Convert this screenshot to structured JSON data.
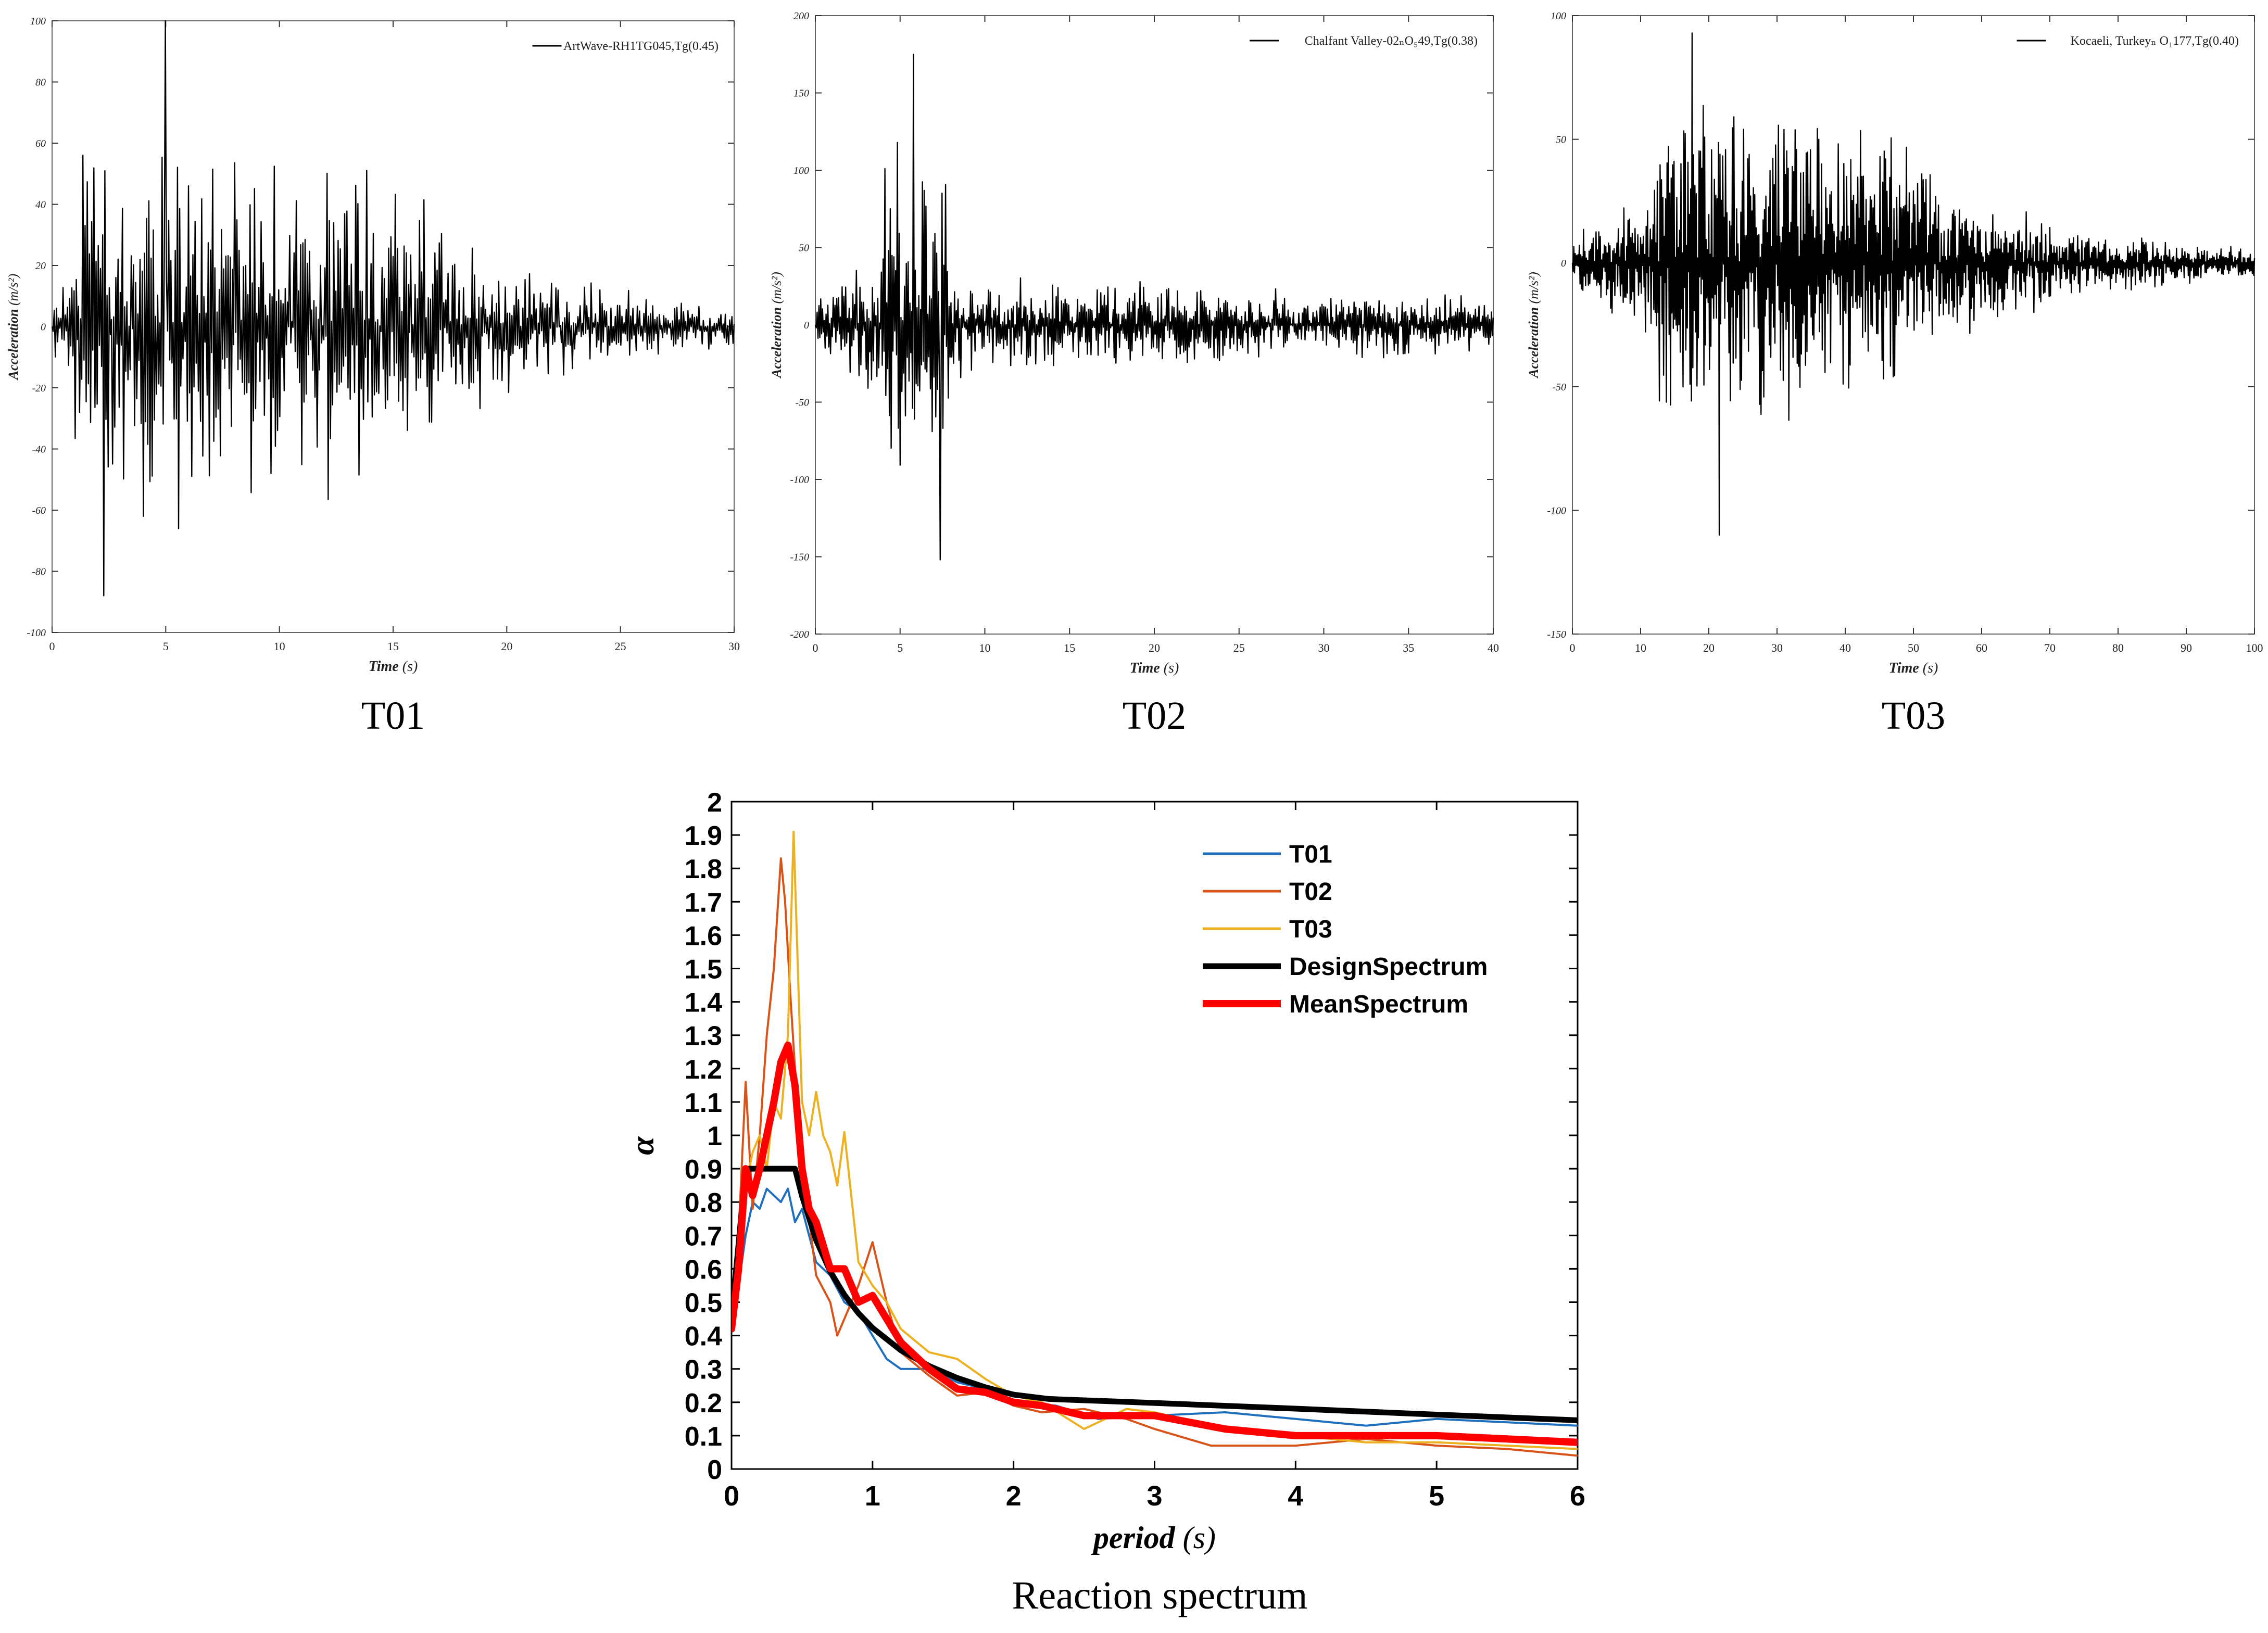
{
  "chart_data": [
    {
      "type": "line",
      "caption": "T01",
      "legend": "ArtWave-RH1TG045,Tg(0.45)",
      "xlabel": "Time",
      "xunit": "(s)",
      "ylabel": "Acceleration",
      "yunit": "(m/s²)",
      "xlim": [
        0,
        30
      ],
      "ylim": [
        -100,
        100
      ],
      "xticks": [
        0,
        5,
        10,
        15,
        20,
        25,
        30
      ],
      "yticks": [
        -100,
        -80,
        -60,
        -40,
        -20,
        0,
        20,
        40,
        60,
        80,
        100
      ],
      "duration": 30,
      "peak_time": 5,
      "peak_value": 100,
      "min_value": -88,
      "strong_phase": [
        1,
        15
      ]
    },
    {
      "type": "line",
      "caption": "T02",
      "legend": "Chalfant Valley-02ₙO₅49,Tg(0.38)",
      "xlabel": "Time",
      "xunit": "(s)",
      "ylabel": "Acceleration",
      "yunit": "(m/s²)",
      "xlim": [
        0,
        40
      ],
      "ylim": [
        -200,
        200
      ],
      "xticks": [
        0,
        5,
        10,
        15,
        20,
        25,
        30,
        35,
        40
      ],
      "yticks": [
        -200,
        -150,
        -100,
        -50,
        0,
        50,
        100,
        150,
        200
      ],
      "duration": 40,
      "peak_time": 5.8,
      "peak_value": 175,
      "min_value": -152,
      "strong_phase": [
        4,
        8
      ]
    },
    {
      "type": "line",
      "caption": "T03",
      "legend": "Kocaeli, Turkeyₙ O₁177,Tg(0.40)",
      "xlabel": "Time",
      "xunit": "(s)",
      "ylabel": "Acceleration",
      "yunit": "(m/s²)",
      "xlim": [
        0,
        100
      ],
      "ylim": [
        -150,
        100
      ],
      "xticks": [
        0,
        10,
        20,
        30,
        40,
        50,
        60,
        70,
        80,
        90,
        100
      ],
      "yticks": [
        -150,
        -100,
        -50,
        0,
        50,
        100
      ],
      "duration": 100,
      "peak_time": 17.5,
      "peak_value": 93,
      "min_value": -110,
      "strong_phase": [
        12,
        45
      ]
    },
    {
      "type": "line",
      "caption": "Reaction spectrum",
      "xlabel": "period",
      "xunit": "(s)",
      "ylabel": "α",
      "xlim": [
        0,
        6
      ],
      "ylim": [
        0,
        2
      ],
      "xticks": [
        0,
        1,
        2,
        3,
        4,
        5,
        6
      ],
      "yticks": [
        0,
        0.1,
        0.2,
        0.3,
        0.4,
        0.5,
        0.6,
        0.7,
        0.8,
        0.9,
        1,
        1.1,
        1.2,
        1.3,
        1.4,
        1.5,
        1.6,
        1.7,
        1.8,
        1.9,
        2
      ],
      "series": [
        {
          "name": "T01",
          "color": "#1f6fbf",
          "width": 4,
          "x": [
            0,
            0.05,
            0.1,
            0.15,
            0.2,
            0.25,
            0.3,
            0.35,
            0.4,
            0.45,
            0.5,
            0.6,
            0.7,
            0.8,
            0.9,
            1.0,
            1.1,
            1.2,
            1.4,
            1.6,
            1.8,
            2.0,
            2.3,
            2.6,
            3.0,
            3.5,
            4.0,
            4.5,
            5.0,
            5.5,
            6.0
          ],
          "y": [
            0.42,
            0.55,
            0.7,
            0.8,
            0.78,
            0.84,
            0.82,
            0.8,
            0.84,
            0.74,
            0.78,
            0.62,
            0.58,
            0.5,
            0.47,
            0.4,
            0.33,
            0.3,
            0.3,
            0.26,
            0.24,
            0.2,
            0.19,
            0.15,
            0.16,
            0.17,
            0.15,
            0.13,
            0.15,
            0.14,
            0.13
          ]
        },
        {
          "name": "T02",
          "color": "#d95319",
          "width": 4,
          "x": [
            0,
            0.05,
            0.1,
            0.15,
            0.2,
            0.25,
            0.3,
            0.35,
            0.38,
            0.42,
            0.45,
            0.5,
            0.55,
            0.6,
            0.7,
            0.75,
            0.8,
            0.9,
            1.0,
            1.1,
            1.2,
            1.4,
            1.6,
            1.8,
            2.0,
            2.2,
            2.5,
            2.8,
            3.0,
            3.4,
            4.0,
            4.5,
            5.0,
            5.5,
            6.0
          ],
          "y": [
            0.42,
            0.7,
            1.16,
            0.78,
            1.0,
            1.3,
            1.5,
            1.83,
            1.7,
            1.4,
            1.2,
            0.85,
            0.75,
            0.58,
            0.5,
            0.4,
            0.45,
            0.55,
            0.68,
            0.5,
            0.35,
            0.28,
            0.22,
            0.23,
            0.19,
            0.17,
            0.18,
            0.15,
            0.12,
            0.07,
            0.07,
            0.09,
            0.07,
            0.06,
            0.04
          ]
        },
        {
          "name": "T03",
          "color": "#edb120",
          "width": 4,
          "x": [
            0,
            0.05,
            0.1,
            0.15,
            0.2,
            0.25,
            0.3,
            0.35,
            0.4,
            0.44,
            0.5,
            0.55,
            0.6,
            0.65,
            0.7,
            0.75,
            0.8,
            0.9,
            1.0,
            1.1,
            1.2,
            1.4,
            1.6,
            1.8,
            2.0,
            2.2,
            2.5,
            2.8,
            3.0,
            3.5,
            4.0,
            4.5,
            5.0,
            5.5,
            6.0
          ],
          "y": [
            0.42,
            0.6,
            0.85,
            0.95,
            1.0,
            0.9,
            1.1,
            1.05,
            1.3,
            1.91,
            1.1,
            1.0,
            1.13,
            1.0,
            0.95,
            0.85,
            1.01,
            0.62,
            0.55,
            0.5,
            0.42,
            0.35,
            0.33,
            0.27,
            0.22,
            0.2,
            0.12,
            0.18,
            0.17,
            0.12,
            0.1,
            0.08,
            0.08,
            0.07,
            0.06
          ]
        },
        {
          "name": "DesignSpectrum",
          "color": "#000000",
          "width": 11,
          "x": [
            0,
            0.1,
            0.45,
            0.5,
            0.6,
            0.7,
            0.8,
            0.9,
            1.0,
            1.2,
            1.4,
            1.6,
            1.8,
            2.0,
            2.25,
            3.0,
            4.0,
            5.0,
            6.0
          ],
          "y": [
            0.45,
            0.9,
            0.9,
            0.818,
            0.686,
            0.592,
            0.522,
            0.467,
            0.423,
            0.356,
            0.309,
            0.273,
            0.245,
            0.223,
            0.21,
            0.198,
            0.181,
            0.163,
            0.146
          ]
        },
        {
          "name": "MeanSpectrum",
          "color": "#ff0000",
          "width": 14,
          "x": [
            0,
            0.05,
            0.1,
            0.15,
            0.2,
            0.25,
            0.3,
            0.35,
            0.4,
            0.45,
            0.5,
            0.55,
            0.6,
            0.7,
            0.8,
            0.9,
            1.0,
            1.2,
            1.4,
            1.6,
            1.8,
            2.0,
            2.2,
            2.5,
            2.8,
            3.0,
            3.5,
            4.0,
            4.5,
            5.0,
            5.5,
            6.0
          ],
          "y": [
            0.42,
            0.6,
            0.9,
            0.82,
            0.9,
            1.0,
            1.1,
            1.22,
            1.27,
            1.15,
            0.9,
            0.78,
            0.74,
            0.6,
            0.6,
            0.5,
            0.52,
            0.38,
            0.3,
            0.24,
            0.23,
            0.2,
            0.19,
            0.16,
            0.16,
            0.16,
            0.12,
            0.1,
            0.1,
            0.1,
            0.09,
            0.08
          ]
        }
      ]
    }
  ]
}
